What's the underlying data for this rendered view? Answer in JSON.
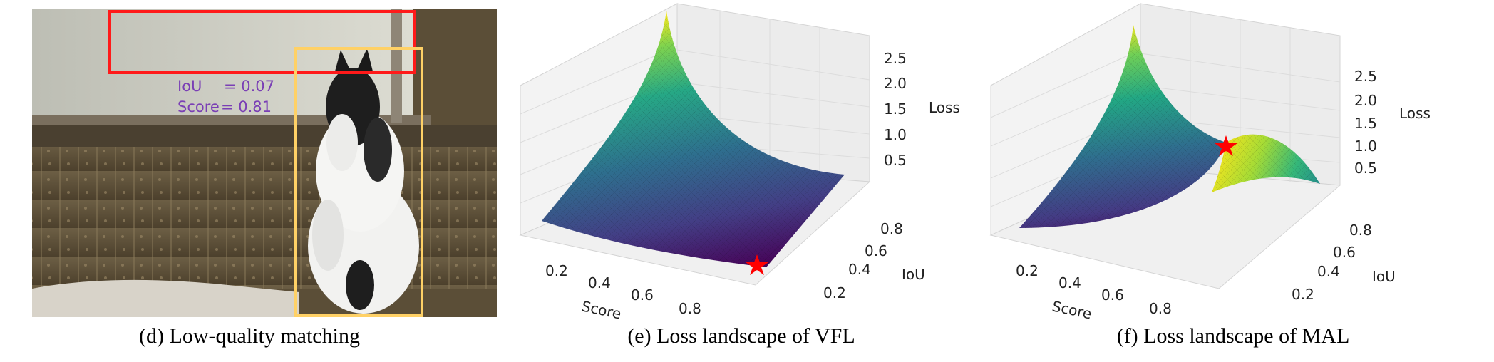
{
  "figure": {
    "panel_d": {
      "caption": "(d) Low-quality matching",
      "iou_label": "IoU",
      "iou_value": "= 0.07",
      "score_label": "Score",
      "score_value": "= 0.81",
      "colors": {
        "red_box": "#ff1a1a",
        "yellow_box": "#ffd166",
        "text_purple": "#7a3fb5"
      }
    },
    "panel_e": {
      "caption": "(e) Loss landscape of VFL",
      "x_label": "Score",
      "y_label": "IoU",
      "z_label": "Loss",
      "x_ticks": [
        "0.2",
        "0.4",
        "0.6",
        "0.8"
      ],
      "y_ticks": [
        "0.2",
        "0.4",
        "0.6",
        "0.8"
      ],
      "z_ticks": [
        "0.5",
        "1.0",
        "1.5",
        "2.0",
        "2.5"
      ]
    },
    "panel_f": {
      "caption": "(f) Loss landscape of MAL",
      "x_label": "Score",
      "y_label": "IoU",
      "z_label": "Loss",
      "x_ticks": [
        "0.2",
        "0.4",
        "0.6",
        "0.8"
      ],
      "y_ticks": [
        "0.2",
        "0.4",
        "0.6",
        "0.8"
      ],
      "z_ticks": [
        "0.5",
        "1.0",
        "1.5",
        "2.0",
        "2.5"
      ]
    }
  }
}
